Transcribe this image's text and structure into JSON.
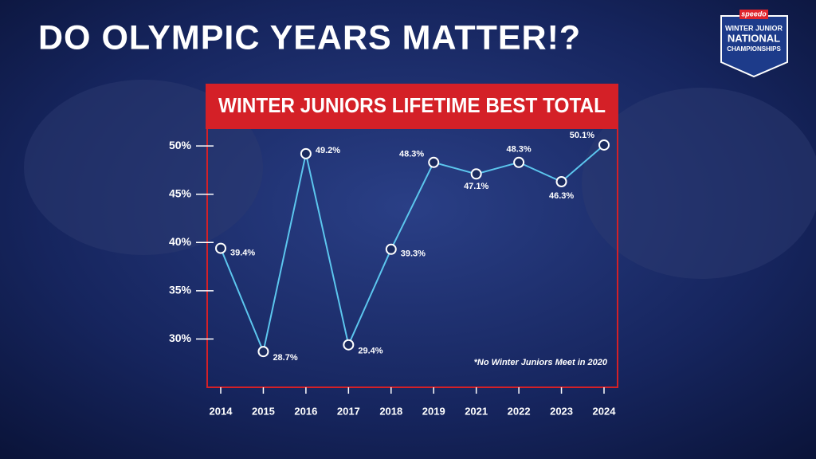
{
  "header": {
    "title": "DO OLYMPIC YEARS MATTER!?"
  },
  "logo": {
    "brand": "speedo",
    "line1": "WINTER JUNIOR",
    "line2": "NATIONAL",
    "line3": "CHAMPIONSHIPS"
  },
  "chart_data": {
    "type": "line",
    "title": "WINTER JUNIORS LIFETIME BEST TOTAL",
    "annotation": "*No Winter Juniors Meet in 2020",
    "categories": [
      "2014",
      "2015",
      "2016",
      "2017",
      "2018",
      "2019",
      "2021",
      "2022",
      "2023",
      "2024"
    ],
    "values": [
      39.4,
      28.7,
      49.2,
      29.4,
      39.3,
      48.3,
      47.1,
      48.3,
      46.3,
      50.1
    ],
    "value_labels": [
      "39.4%",
      "28.7%",
      "49.2%",
      "29.4%",
      "39.3%",
      "48.3%",
      "47.1%",
      "48.3%",
      "46.3%",
      "50.1%"
    ],
    "color": "#5cc6ee",
    "ylim": [
      25,
      51.5
    ],
    "yticks": [
      {
        "value": 30,
        "label": "30%"
      },
      {
        "value": 35,
        "label": "35%"
      },
      {
        "value": 40,
        "label": "40%"
      },
      {
        "value": 45,
        "label": "45%"
      },
      {
        "value": 50,
        "label": "50%"
      }
    ]
  }
}
